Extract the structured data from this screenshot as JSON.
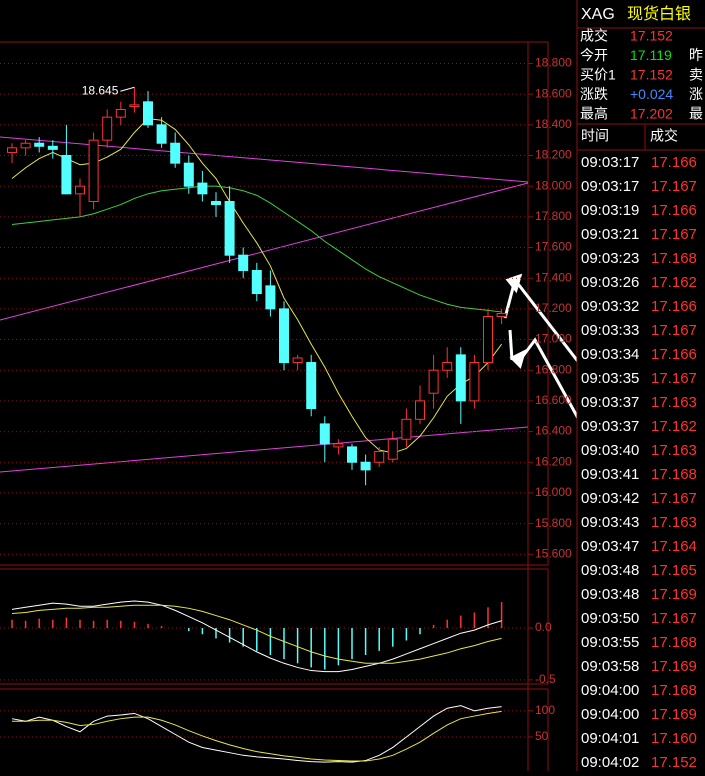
{
  "header": {
    "symbol": "XAG",
    "name": "现货白银"
  },
  "quote": {
    "rows": [
      {
        "label": "成交",
        "value": "17.152",
        "color": "#ff3232"
      },
      {
        "label": "今开",
        "value": "17.119",
        "color": "#00e600",
        "label2": "昨"
      },
      {
        "label": "买价1",
        "value": "17.152",
        "color": "#ff3232",
        "label2": "卖"
      },
      {
        "label": "涨跌",
        "value": "+0.024",
        "color": "#3c8cff",
        "label2": "涨"
      },
      {
        "label": "最高",
        "value": "17.202",
        "color": "#ff3232",
        "label2": "最"
      }
    ]
  },
  "trades": {
    "headers": [
      "时间",
      "成交"
    ],
    "price_color": "#ff3232",
    "rows": [
      [
        "09:03:17",
        "17.166"
      ],
      [
        "09:03:17",
        "17.167"
      ],
      [
        "09:03:19",
        "17.166"
      ],
      [
        "09:03:21",
        "17.167"
      ],
      [
        "09:03:23",
        "17.168"
      ],
      [
        "09:03:26",
        "17.162"
      ],
      [
        "09:03:32",
        "17.166"
      ],
      [
        "09:03:33",
        "17.167"
      ],
      [
        "09:03:34",
        "17.166"
      ],
      [
        "09:03:35",
        "17.167"
      ],
      [
        "09:03:37",
        "17.163"
      ],
      [
        "09:03:37",
        "17.162"
      ],
      [
        "09:03:40",
        "17.163"
      ],
      [
        "09:03:41",
        "17.168"
      ],
      [
        "09:03:42",
        "17.167"
      ],
      [
        "09:03:43",
        "17.163"
      ],
      [
        "09:03:47",
        "17.164"
      ],
      [
        "09:03:48",
        "17.165"
      ],
      [
        "09:03:48",
        "17.169"
      ],
      [
        "09:03:50",
        "17.167"
      ],
      [
        "09:03:55",
        "17.168"
      ],
      [
        "09:03:58",
        "17.169"
      ],
      [
        "09:04:00",
        "17.168"
      ],
      [
        "09:04:00",
        "17.169"
      ],
      [
        "09:04:01",
        "17.160"
      ],
      [
        "09:04:02",
        "17.152"
      ]
    ]
  },
  "chart_data": [
    {
      "type": "candlestick",
      "up_color": "#ff3232",
      "down_color": "#54ffff",
      "ylim": [
        15.53,
        18.94
      ],
      "yticks": [
        {
          "value": 18.8,
          "label": "18.800"
        },
        {
          "value": 18.6,
          "label": "18.600"
        },
        {
          "value": 18.4,
          "label": "18.400"
        },
        {
          "value": 18.2,
          "label": "18.200"
        },
        {
          "value": 18.0,
          "label": "18.000"
        },
        {
          "value": 17.8,
          "label": "17.800"
        },
        {
          "value": 17.6,
          "label": "17.600"
        },
        {
          "value": 17.4,
          "label": "17.400"
        },
        {
          "value": 17.2,
          "label": "17.200"
        },
        {
          "value": 17.0,
          "label": "17.000"
        },
        {
          "value": 16.8,
          "label": "16.800"
        },
        {
          "value": 16.6,
          "label": "16.600"
        },
        {
          "value": 16.4,
          "label": "16.400"
        },
        {
          "value": 16.2,
          "label": "16.200"
        },
        {
          "value": 16.0,
          "label": "16.000"
        },
        {
          "value": 15.8,
          "label": "15.800"
        },
        {
          "value": 15.6,
          "label": "15.600"
        }
      ],
      "open": [
        18.22,
        18.25,
        18.28,
        18.26,
        18.2,
        17.95,
        17.9,
        18.3,
        18.45,
        18.52,
        18.55,
        18.4,
        18.28,
        18.15,
        18.02,
        17.9,
        17.9,
        17.55,
        17.45,
        17.35,
        17.2,
        16.85,
        16.85,
        16.45,
        16.3,
        16.3,
        16.2,
        16.2,
        16.22,
        16.35,
        16.48,
        16.65,
        16.8,
        16.9,
        16.6,
        16.85,
        17.15
      ],
      "high": [
        18.28,
        18.3,
        18.32,
        18.3,
        18.4,
        18.05,
        18.35,
        18.5,
        18.55,
        18.645,
        18.62,
        18.45,
        18.35,
        18.2,
        18.1,
        17.96,
        18.0,
        17.6,
        17.5,
        17.45,
        17.25,
        16.9,
        16.9,
        16.5,
        16.35,
        16.32,
        16.25,
        16.3,
        16.4,
        16.55,
        16.7,
        16.9,
        16.95,
        16.95,
        16.9,
        17.2,
        17.2
      ],
      "low": [
        18.15,
        18.2,
        18.22,
        18.18,
        17.95,
        17.8,
        17.85,
        18.25,
        18.4,
        18.48,
        18.38,
        18.25,
        18.12,
        17.95,
        17.9,
        17.8,
        17.5,
        17.4,
        17.25,
        17.15,
        16.8,
        16.8,
        16.5,
        16.2,
        16.25,
        16.15,
        16.05,
        16.17,
        16.2,
        16.3,
        16.45,
        16.55,
        16.75,
        16.45,
        16.55,
        16.8,
        17.1
      ],
      "close": [
        18.25,
        18.28,
        18.26,
        18.24,
        17.95,
        18.0,
        18.3,
        18.45,
        18.5,
        18.53,
        18.4,
        18.28,
        18.15,
        18.0,
        17.95,
        17.88,
        17.55,
        17.45,
        17.3,
        17.2,
        16.85,
        16.88,
        16.55,
        16.32,
        16.32,
        16.2,
        16.15,
        16.27,
        16.35,
        16.48,
        16.6,
        16.8,
        16.85,
        16.6,
        16.85,
        17.15,
        17.17
      ],
      "lines": [
        {
          "color": "#e6e64b",
          "values": [
            18.05,
            18.12,
            18.18,
            18.22,
            18.18,
            18.14,
            18.15,
            18.19,
            18.24,
            18.35,
            18.44,
            18.43,
            18.37,
            18.27,
            18.15,
            18.05,
            17.9,
            17.76,
            17.63,
            17.48,
            17.27,
            17.13,
            16.97,
            16.82,
            16.65,
            16.5,
            16.36,
            16.28,
            16.26,
            16.29,
            16.37,
            16.49,
            16.63,
            16.71,
            16.76,
            16.85,
            16.97
          ]
        },
        {
          "color": "#3cd23c",
          "values": [
            17.75,
            17.76,
            17.77,
            17.78,
            17.79,
            17.8,
            17.82,
            17.85,
            17.88,
            17.92,
            17.95,
            17.97,
            17.98,
            17.99,
            18.0,
            18.0,
            17.99,
            17.97,
            17.94,
            17.89,
            17.83,
            17.77,
            17.71,
            17.64,
            17.58,
            17.52,
            17.46,
            17.41,
            17.37,
            17.33,
            17.29,
            17.26,
            17.23,
            17.21,
            17.2,
            17.19,
            17.18
          ]
        }
      ],
      "annotation": "18.645"
    },
    {
      "type": "bar",
      "up_color": "#ff3232",
      "down_color": "#54ffff",
      "ylim": [
        -0.53,
        0.54
      ],
      "yticks": [
        {
          "value": 0,
          "label": "0.0"
        },
        {
          "value": -0.5,
          "label": "-0.5"
        }
      ],
      "values": [
        0.08,
        0.07,
        0.09,
        0.08,
        0.1,
        0.08,
        0.07,
        0.08,
        0.07,
        0.06,
        0.04,
        0.02,
        0.0,
        -0.03,
        -0.06,
        -0.1,
        -0.14,
        -0.18,
        -0.22,
        -0.26,
        -0.3,
        -0.34,
        -0.38,
        -0.4,
        -0.36,
        -0.3,
        -0.26,
        -0.22,
        -0.18,
        -0.12,
        -0.06,
        0.03,
        0.08,
        0.12,
        0.15,
        0.2,
        0.25
      ],
      "lines": [
        {
          "color": "#ffffff",
          "values": [
            0.18,
            0.2,
            0.22,
            0.24,
            0.23,
            0.21,
            0.21,
            0.23,
            0.25,
            0.26,
            0.25,
            0.22,
            0.17,
            0.11,
            0.05,
            -0.02,
            -0.09,
            -0.16,
            -0.23,
            -0.29,
            -0.34,
            -0.38,
            -0.41,
            -0.42,
            -0.42,
            -0.4,
            -0.37,
            -0.34,
            -0.3,
            -0.25,
            -0.2,
            -0.15,
            -0.1,
            -0.05,
            -0.02,
            0.03,
            0.07
          ]
        },
        {
          "color": "#e6e64b",
          "values": [
            0.14,
            0.15,
            0.17,
            0.18,
            0.19,
            0.19,
            0.2,
            0.2,
            0.21,
            0.22,
            0.22,
            0.22,
            0.21,
            0.19,
            0.16,
            0.12,
            0.08,
            0.03,
            -0.02,
            -0.08,
            -0.13,
            -0.18,
            -0.23,
            -0.27,
            -0.3,
            -0.32,
            -0.34,
            -0.34,
            -0.34,
            -0.32,
            -0.3,
            -0.27,
            -0.24,
            -0.2,
            -0.17,
            -0.13,
            -0.1
          ]
        }
      ]
    },
    {
      "type": "line",
      "ylim": [
        -15,
        136
      ],
      "yticks": [
        100,
        50
      ],
      "lines": [
        {
          "color": "#ffffff",
          "values": [
            85,
            80,
            88,
            82,
            70,
            60,
            80,
            90,
            92,
            95,
            85,
            70,
            55,
            40,
            30,
            25,
            20,
            15,
            12,
            10,
            8,
            5,
            3,
            2,
            3,
            2,
            5,
            15,
            30,
            50,
            70,
            90,
            105,
            110,
            100,
            105,
            108
          ]
        },
        {
          "color": "#e6e64b",
          "values": [
            80,
            80,
            82,
            82,
            78,
            72,
            74,
            80,
            85,
            88,
            88,
            82,
            73,
            62,
            52,
            43,
            35,
            28,
            22,
            18,
            14,
            11,
            8,
            6,
            5,
            4,
            4,
            8,
            15,
            27,
            40,
            57,
            73,
            85,
            90,
            95,
            99
          ]
        }
      ]
    }
  ]
}
